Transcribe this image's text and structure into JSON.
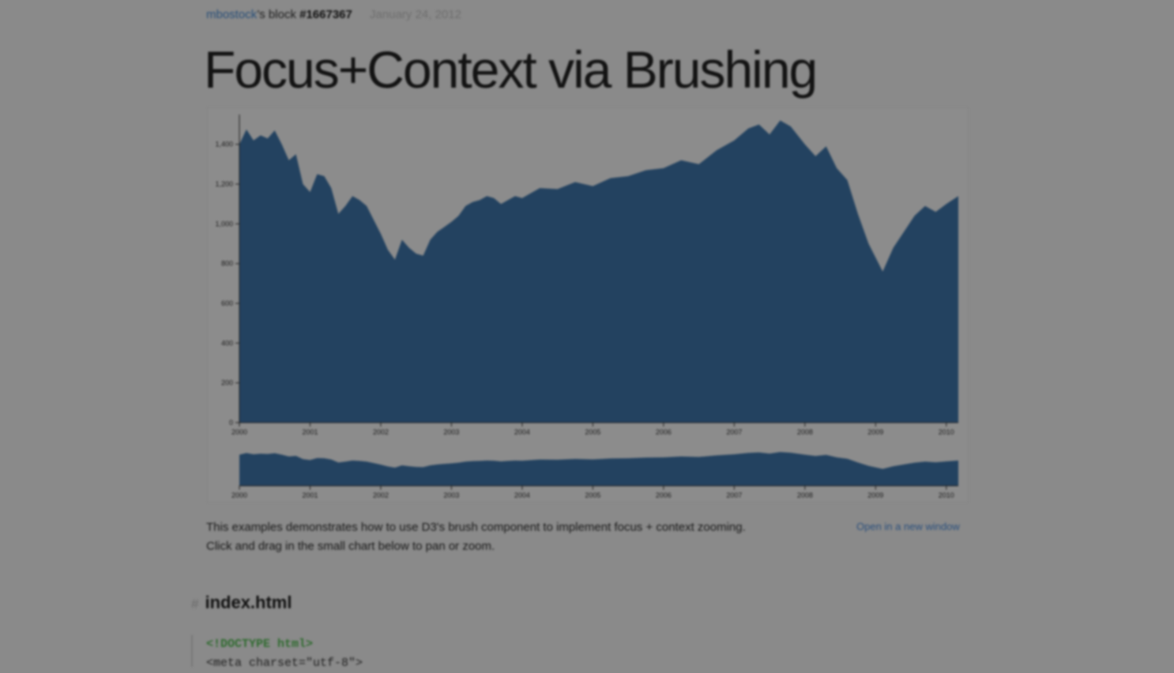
{
  "header": {
    "user": "mbostock",
    "block_suffix": "’s block",
    "block_id": "#1667367",
    "date": "January 24, 2012"
  },
  "title": "Focus+Context via Brushing",
  "description": "This examples demonstrates how to use D3's brush component to implement focus + context zooming. Click and drag in the small chart below to pan or zoom.",
  "open_link": "Open in a new window",
  "file": {
    "hash": "#",
    "name": "index.html"
  },
  "code": {
    "line1": "<!DOCTYPE html>",
    "line2": "<meta charset=\"utf-8\">"
  },
  "colors": {
    "area": "#234260",
    "background": "#8a8a8a"
  },
  "chart_data": {
    "type": "area",
    "title": "",
    "xlabel": "",
    "ylabel": "",
    "x_ticks": [
      "2000",
      "2001",
      "2002",
      "2003",
      "2004",
      "2005",
      "2006",
      "2007",
      "2008",
      "2009",
      "2010"
    ],
    "y_ticks": [
      "0",
      "200",
      "400",
      "600",
      "800",
      "1,000",
      "1,200",
      "1,400"
    ],
    "ylim": [
      0,
      1550
    ],
    "xlim": [
      2000.0,
      2010.17
    ],
    "context_ylim": [
      0,
      1850
    ],
    "grid": false,
    "legend": "none",
    "series": [
      {
        "x": [
          2000.0,
          2000.1,
          2000.2,
          2000.3,
          2000.4,
          2000.5,
          2000.6,
          2000.7,
          2000.8,
          2000.9,
          2001.0,
          2001.1,
          2001.2,
          2001.3,
          2001.4,
          2001.5,
          2001.6,
          2001.7,
          2001.8,
          2001.9,
          2002.0,
          2002.1,
          2002.2,
          2002.3,
          2002.4,
          2002.5,
          2002.6,
          2002.7,
          2002.8,
          2002.9,
          2003.0,
          2003.1,
          2003.2,
          2003.3,
          2003.4,
          2003.5,
          2003.6,
          2003.7,
          2003.8,
          2003.9,
          2004.0,
          2004.25,
          2004.5,
          2004.75,
          2005.0,
          2005.25,
          2005.5,
          2005.75,
          2006.0,
          2006.25,
          2006.5,
          2006.75,
          2007.0,
          2007.2,
          2007.35,
          2007.5,
          2007.65,
          2007.8,
          2008.0,
          2008.15,
          2008.3,
          2008.45,
          2008.6,
          2008.75,
          2008.9,
          2009.1,
          2009.25,
          2009.4,
          2009.55,
          2009.7,
          2009.85,
          2010.0,
          2010.17
        ],
        "values": [
          1400,
          1475,
          1420,
          1445,
          1430,
          1470,
          1400,
          1320,
          1350,
          1200,
          1160,
          1250,
          1240,
          1180,
          1050,
          1090,
          1140,
          1120,
          1090,
          1020,
          950,
          870,
          820,
          920,
          880,
          850,
          840,
          920,
          960,
          985,
          1010,
          1040,
          1090,
          1110,
          1120,
          1140,
          1130,
          1100,
          1120,
          1140,
          1130,
          1180,
          1175,
          1210,
          1190,
          1230,
          1240,
          1270,
          1280,
          1320,
          1300,
          1370,
          1420,
          1480,
          1500,
          1450,
          1520,
          1490,
          1400,
          1340,
          1390,
          1280,
          1220,
          1050,
          900,
          760,
          880,
          960,
          1040,
          1090,
          1060,
          1100,
          1140
        ]
      }
    ]
  }
}
